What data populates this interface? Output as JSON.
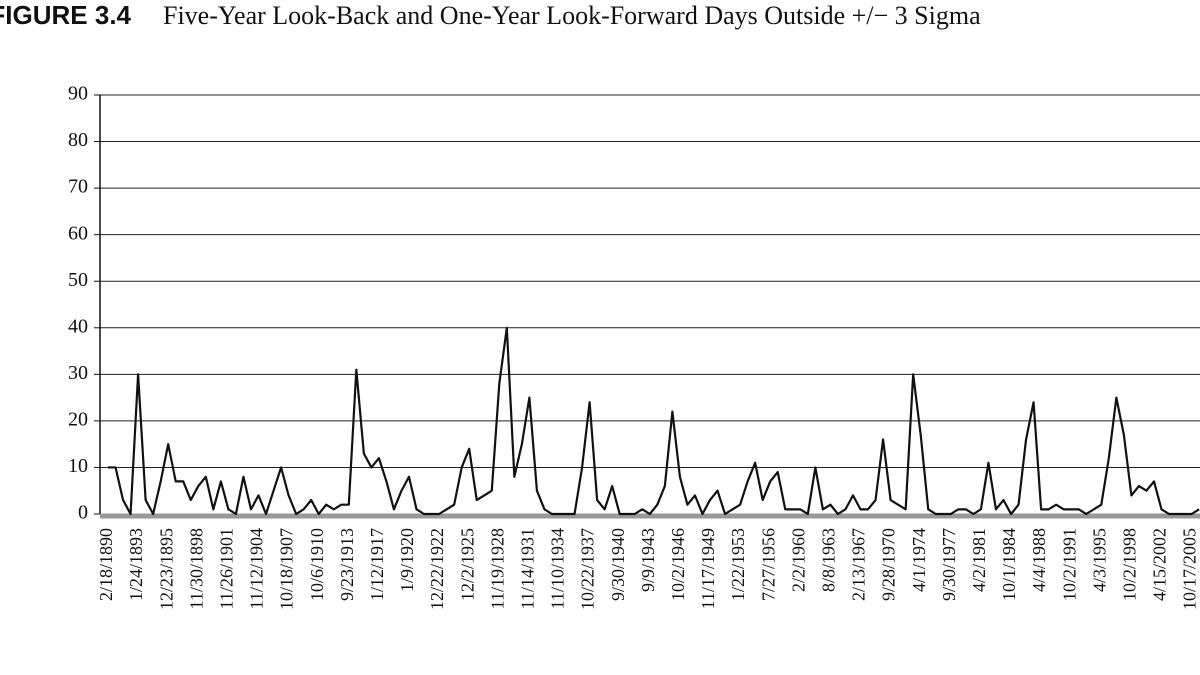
{
  "chart_data": {
    "type": "line",
    "figure_label": "FIGURE 3.4",
    "title": "Five-Year Look-Back and One-Year Look-Forward Days Outside +/− 3 Sigma",
    "categories": [
      "2/18/1890",
      null,
      null,
      null,
      "1/24/1893",
      null,
      null,
      null,
      "12/23/1895",
      null,
      null,
      null,
      "11/30/1898",
      null,
      null,
      null,
      "11/26/1901",
      null,
      null,
      null,
      "11/12/1904",
      null,
      null,
      null,
      "10/18/1907",
      null,
      null,
      null,
      "10/6/1910",
      null,
      null,
      null,
      "9/23/1913",
      null,
      null,
      null,
      "1/12/1917",
      null,
      null,
      null,
      "1/9/1920",
      null,
      null,
      null,
      "12/22/1922",
      null,
      null,
      null,
      "12/2/1925",
      null,
      null,
      null,
      "11/19/1928",
      null,
      null,
      null,
      "11/14/1931",
      null,
      null,
      null,
      "11/10/1934",
      null,
      null,
      null,
      "10/22/1937",
      null,
      null,
      null,
      "9/30/1940",
      null,
      null,
      null,
      "9/9/1943",
      null,
      null,
      null,
      "10/2/1946",
      null,
      null,
      null,
      "11/17/1949",
      null,
      null,
      null,
      "1/22/1953",
      null,
      null,
      null,
      "7/27/1956",
      null,
      null,
      null,
      "2/2/1960",
      null,
      null,
      null,
      "8/8/1963",
      null,
      null,
      null,
      "2/13/1967",
      null,
      null,
      null,
      "9/28/1970",
      null,
      null,
      null,
      "4/1/1974",
      null,
      null,
      null,
      "9/30/1977",
      null,
      null,
      null,
      "4/2/1981",
      null,
      null,
      null,
      "10/1/1984",
      null,
      null,
      null,
      "4/4/1988",
      null,
      null,
      null,
      "10/2/1991",
      null,
      null,
      null,
      "4/3/1995",
      null,
      null,
      null,
      "10/2/1998",
      null,
      null,
      null,
      "4/15/2002",
      null,
      null,
      null,
      "10/17/2005",
      null
    ],
    "values": [
      10,
      10,
      3,
      0,
      30,
      3,
      0,
      7,
      15,
      7,
      7,
      3,
      6,
      8,
      1,
      7,
      1,
      0,
      8,
      1,
      4,
      0,
      5,
      10,
      4,
      0,
      1,
      3,
      0,
      2,
      1,
      2,
      2,
      31,
      13,
      10,
      12,
      7,
      1,
      5,
      8,
      1,
      0,
      0,
      0,
      1,
      2,
      10,
      14,
      3,
      4,
      5,
      28,
      40,
      8,
      15,
      25,
      5,
      1,
      0,
      0,
      0,
      0,
      10,
      24,
      3,
      1,
      6,
      0,
      0,
      0,
      1,
      0,
      2,
      6,
      22,
      8,
      2,
      4,
      0,
      3,
      5,
      0,
      1,
      2,
      7,
      11,
      3,
      7,
      9,
      1,
      1,
      1,
      0,
      10,
      1,
      2,
      0,
      1,
      4,
      1,
      1,
      3,
      16,
      3,
      2,
      1,
      30,
      17,
      1,
      0,
      0,
      0,
      1,
      1,
      0,
      1,
      11,
      1,
      3,
      0,
      2,
      16,
      24,
      1,
      1,
      2,
      1,
      1,
      1,
      0,
      1,
      2,
      12,
      25,
      17,
      4,
      6,
      5,
      7,
      1,
      0,
      0,
      0,
      0,
      1
    ],
    "color": "#111111",
    "ylim": [
      0,
      90
    ],
    "yticks": [
      0,
      10,
      20,
      30,
      40,
      50,
      60,
      70,
      80,
      90
    ],
    "grid": true
  }
}
